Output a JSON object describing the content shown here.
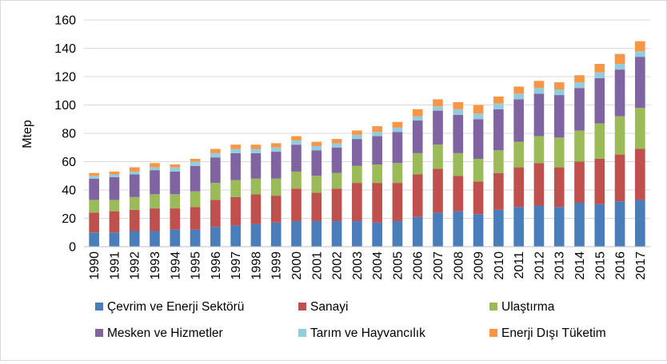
{
  "chart_data": {
    "type": "bar",
    "stacked": true,
    "title": "",
    "xlabel": "",
    "ylabel": "Mtep",
    "ylim": [
      0,
      160
    ],
    "yticks": [
      0,
      20,
      40,
      60,
      80,
      100,
      120,
      140,
      160
    ],
    "grid": true,
    "legend_position": "bottom",
    "categories": [
      "1990",
      "1991",
      "1992",
      "1993",
      "1994",
      "1995",
      "1996",
      "1997",
      "1998",
      "1999",
      "2000",
      "2001",
      "2002",
      "2003",
      "2004",
      "2005",
      "2006",
      "2007",
      "2008",
      "2009",
      "2010",
      "2011",
      "2012",
      "2013",
      "2014",
      "2015",
      "2016",
      "2017"
    ],
    "series": [
      {
        "name": "Çevrim ve Enerji Sektörü",
        "color": "#4a7ebb",
        "values": [
          10,
          10,
          11,
          11,
          12,
          12,
          14,
          15,
          16,
          17,
          18,
          18,
          18,
          18,
          17,
          18,
          21,
          24,
          25,
          23,
          26,
          28,
          29,
          28,
          31,
          30,
          32,
          33
        ]
      },
      {
        "name": "Sanayi",
        "color": "#c0504d",
        "values": [
          14,
          15,
          15,
          16,
          15,
          16,
          19,
          20,
          21,
          19,
          23,
          20,
          23,
          27,
          28,
          27,
          30,
          31,
          25,
          23,
          26,
          28,
          30,
          28,
          29,
          32,
          33,
          36
        ]
      },
      {
        "name": "Ulaştırma",
        "color": "#9bbb59",
        "values": [
          9,
          8,
          9,
          10,
          10,
          11,
          12,
          12,
          11,
          12,
          12,
          12,
          11,
          12,
          13,
          14,
          15,
          17,
          16,
          16,
          16,
          18,
          19,
          21,
          22,
          25,
          27,
          29
        ]
      },
      {
        "name": "Mesken ve Hizmetler",
        "color": "#8064a2",
        "values": [
          15,
          16,
          16,
          17,
          16,
          18,
          18,
          19,
          18,
          19,
          19,
          18,
          18,
          19,
          20,
          22,
          23,
          24,
          27,
          28,
          29,
          30,
          30,
          30,
          30,
          32,
          33,
          36
        ]
      },
      {
        "name": "Tarım ve Hayvancılık",
        "color": "#93cddd",
        "values": [
          2,
          2,
          2,
          2,
          3,
          3,
          3,
          3,
          3,
          3,
          3,
          3,
          3,
          3,
          3,
          3,
          3,
          3,
          4,
          4,
          4,
          4,
          4,
          4,
          4,
          4,
          4,
          4
        ]
      },
      {
        "name": "Enerji Dışı Tüketim",
        "color": "#f79646",
        "values": [
          2,
          2,
          3,
          3,
          2,
          2,
          3,
          3,
          3,
          3,
          3,
          3,
          3,
          3,
          4,
          4,
          5,
          5,
          5,
          6,
          5,
          5,
          5,
          5,
          5,
          6,
          7,
          7
        ]
      }
    ]
  }
}
